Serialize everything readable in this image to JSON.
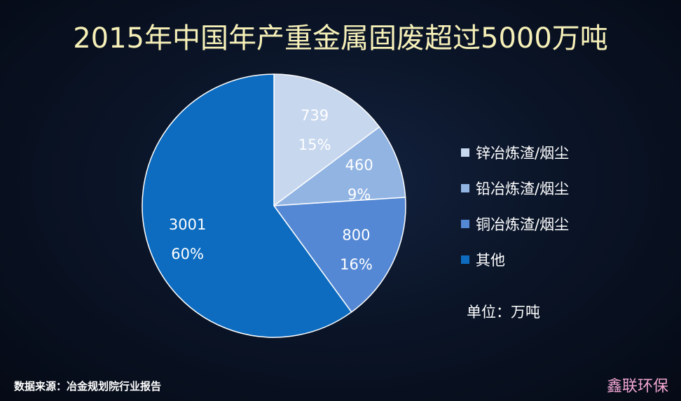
{
  "title": "2015年中国年产重金属固废超过5000万吨",
  "unit_label": "单位：万吨",
  "source": "数据来源：冶金规划院行业报告",
  "watermark": "鑫联环保",
  "chart_data": {
    "type": "pie",
    "title": "2015年中国年产重金属固废超过5000万吨",
    "start_angle_deg": 0,
    "direction": "clockwise",
    "slices": [
      {
        "label": "锌冶炼渣/烟尘",
        "value": 739,
        "value_label": "739",
        "percent_label": "15%",
        "color": "#c7d7ee"
      },
      {
        "label": "铅冶炼渣/烟尘",
        "value": 460,
        "value_label": "460",
        "percent_label": "9%",
        "color": "#91b4e3"
      },
      {
        "label": "铜冶炼渣/烟尘",
        "value": 800,
        "value_label": "800",
        "percent_label": "16%",
        "color": "#5488d4"
      },
      {
        "label": "其他",
        "value": 3001,
        "value_label": "3001",
        "percent_label": "60%",
        "color": "#0d6cc0"
      }
    ],
    "legend_position": "right"
  }
}
